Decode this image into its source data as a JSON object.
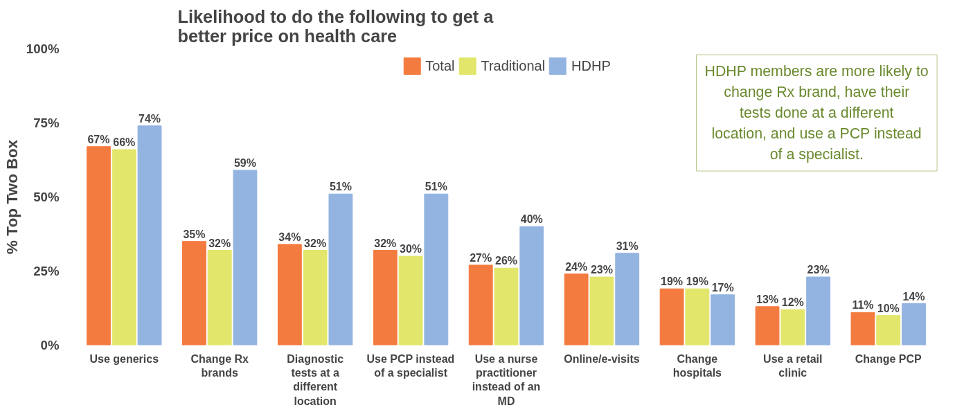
{
  "chart_data": {
    "type": "bar",
    "title": "Likelihood to do the following to get a better price on health care",
    "ylabel": "% Top Two Box",
    "categories": [
      "Use generics",
      "Change Rx brands",
      "Diagnostic tests at a different location",
      "Use PCP instead of a specialist",
      "Use a nurse practitioner instead of an MD",
      "Online/e-visits",
      "Change hospitals",
      "Use a retail clinic",
      "Change PCP"
    ],
    "series": [
      {
        "name": "Total",
        "color": "#f47b3f",
        "values": [
          67,
          35,
          34,
          32,
          27,
          24,
          19,
          13,
          11
        ],
        "value_labels": [
          "67%",
          "35%",
          "34%",
          "32%",
          "27%",
          "24%",
          "19%",
          "13%",
          "11%"
        ]
      },
      {
        "name": "Traditional",
        "color": "#e2e66a",
        "values": [
          66,
          32,
          32,
          30,
          26,
          23,
          19,
          12,
          10
        ],
        "value_labels": [
          "66%",
          "32%",
          "32%",
          "30%",
          "26%",
          "23%",
          "19%",
          "12%",
          "10%"
        ]
      },
      {
        "name": "HDHP",
        "color": "#93b3e0",
        "values": [
          74,
          59,
          51,
          51,
          40,
          31,
          17,
          23,
          14
        ],
        "value_labels": [
          "74%",
          "59%",
          "51%",
          "51%",
          "40%",
          "31%",
          "17%",
          "23%",
          "14%"
        ]
      }
    ],
    "ylim": [
      0,
      100
    ],
    "yticks": [
      {
        "value": 0,
        "label": "0%"
      },
      {
        "value": 25,
        "label": "25%"
      },
      {
        "value": 50,
        "label": "50%"
      },
      {
        "value": 75,
        "label": "75%"
      },
      {
        "value": 100,
        "label": "100%"
      }
    ],
    "grid": false,
    "legend": "top",
    "annotations": [
      "HDHP members are more likely to change Rx brand, have their tests done at a different location, and use a PCP instead of a specialist."
    ]
  }
}
